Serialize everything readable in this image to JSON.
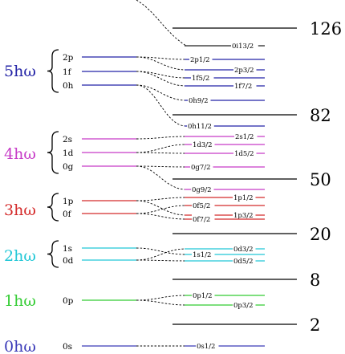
{
  "colors": {
    "0": "#3a3ab8",
    "1": "#33cc33",
    "2": "#22c7d6",
    "3": "#d42a2a",
    "4": "#c73bc7",
    "5": "#2323a6",
    "magic": "#000000",
    "connector": "#000000"
  },
  "shells": [
    {
      "id": 0,
      "label": "0hω",
      "sublevels": [
        "0s"
      ]
    },
    {
      "id": 1,
      "label": "1hω",
      "sublevels": [
        "0p"
      ]
    },
    {
      "id": 2,
      "label": "2hω",
      "sublevels": [
        "1s",
        "0d"
      ]
    },
    {
      "id": 3,
      "label": "3hω",
      "sublevels": [
        "1p",
        "0f"
      ]
    },
    {
      "id": 4,
      "label": "4hω",
      "sublevels": [
        "2s",
        "1d",
        "0g"
      ]
    },
    {
      "id": 5,
      "label": "5hω",
      "sublevels": [
        "2p",
        "1f",
        "0h"
      ]
    }
  ],
  "levels": [
    {
      "label": "0s1/2",
      "shell": 0
    },
    {
      "label": "0p1/2",
      "shell": 1
    },
    {
      "label": "0p3/2",
      "shell": 1
    },
    {
      "label": "0d3/2",
      "shell": 2
    },
    {
      "label": "1s1/2",
      "shell": 2
    },
    {
      "label": "0d5/2",
      "shell": 2
    },
    {
      "label": "1p1/2",
      "shell": 3
    },
    {
      "label": "0f5/2",
      "shell": 3
    },
    {
      "label": "1p3/2",
      "shell": 3
    },
    {
      "label": "0f7/2",
      "shell": 3
    },
    {
      "label": "0g9/2",
      "shell": 4
    },
    {
      "label": "0g7/2",
      "shell": 4
    },
    {
      "label": "2s1/2",
      "shell": 4
    },
    {
      "label": "1d3/2",
      "shell": 4
    },
    {
      "label": "1d5/2",
      "shell": 4
    },
    {
      "label": "0h11/2",
      "shell": 5
    },
    {
      "label": "0h9/2",
      "shell": 5
    },
    {
      "label": "1f7/2",
      "shell": 5
    },
    {
      "label": "1f5/2",
      "shell": 5
    },
    {
      "label": "2p3/2",
      "shell": 5
    },
    {
      "label": "2p1/2",
      "shell": 5
    },
    {
      "label": "0i13/2",
      "shell": 6
    }
  ],
  "magic_numbers": [
    "2",
    "8",
    "20",
    "50",
    "82",
    "126"
  ]
}
